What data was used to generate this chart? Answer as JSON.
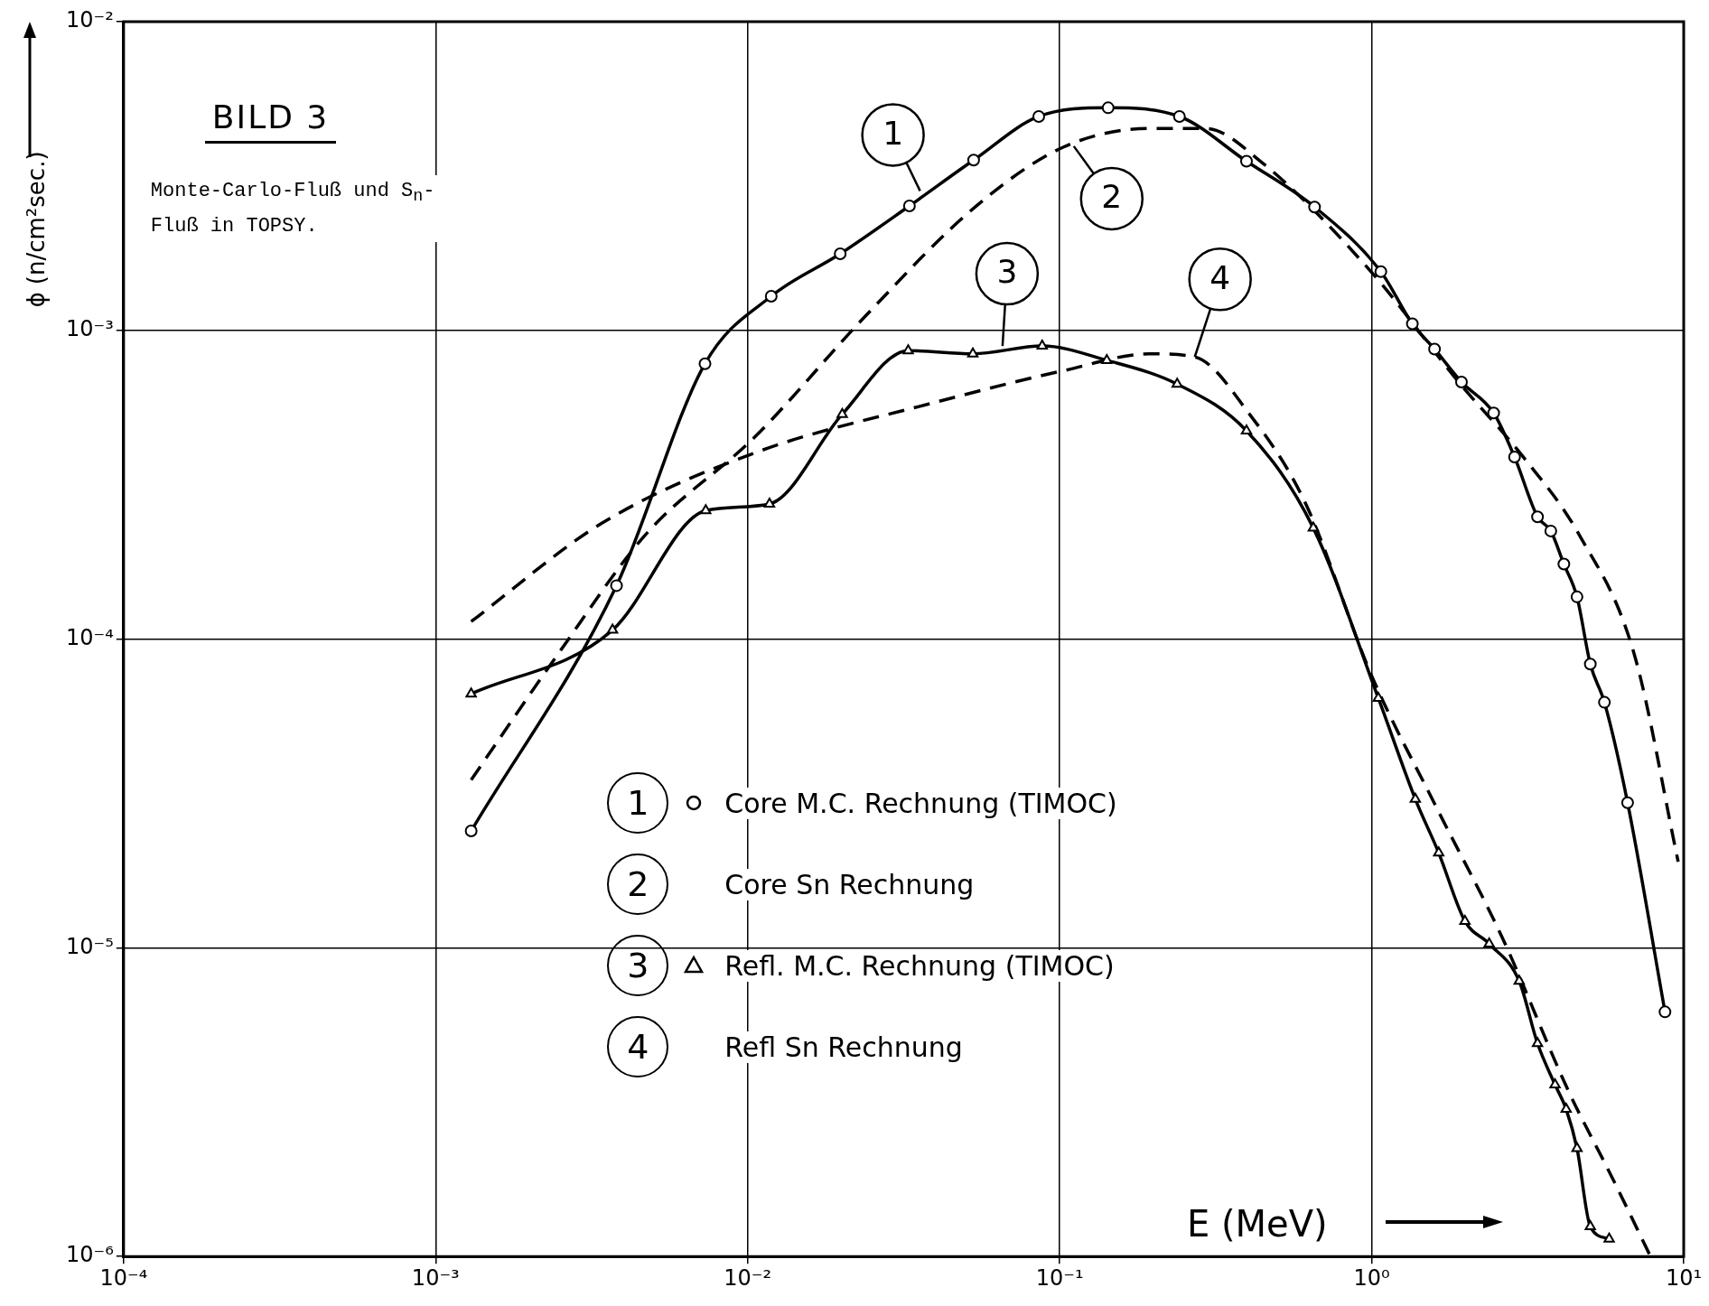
{
  "chart_data": {
    "type": "line",
    "title": "BILD 3",
    "subtitle": "Monte-Carlo-Fluß und S$_{n}$-Fluß in TOPSY.",
    "xlabel": "E (MeV)",
    "ylabel": "ϕ (n/cm²sec.)",
    "log": "xy",
    "grid": true,
    "legend": "bottom",
    "xlim": [
      0.0001,
      10
    ],
    "ylim": [
      1e-06,
      0.01
    ],
    "xticks": [
      {
        "value": 0.0001,
        "label": "10⁻⁴"
      },
      {
        "value": 0.001,
        "label": "10⁻³"
      },
      {
        "value": 0.01,
        "label": "10⁻²"
      },
      {
        "value": 0.1,
        "label": "10⁻¹"
      },
      {
        "value": 1,
        "label": "10⁰"
      },
      {
        "value": 10,
        "label": "10¹"
      }
    ],
    "yticks": [
      {
        "value": 1e-06,
        "label": "10⁻⁶"
      },
      {
        "value": 1e-05,
        "label": "10⁻⁵"
      },
      {
        "value": 0.0001,
        "label": "10⁻⁴"
      },
      {
        "value": 0.001,
        "label": "10⁻³"
      },
      {
        "value": 0.01,
        "label": "10⁻²"
      }
    ],
    "series": [
      {
        "name": "Core M.C. Rechnung (TIMOC)",
        "color": "#000000",
        "marker": "circle",
        "line_style": "solid",
        "x": [
          0.0013,
          0.0038,
          0.0073,
          0.0119,
          0.0198,
          0.033,
          0.053,
          0.0857,
          0.143,
          0.242,
          0.397,
          0.656,
          1.07,
          1.35,
          1.59,
          1.94,
          2.46,
          2.87,
          3.4,
          3.75,
          4.13,
          4.55,
          5.02,
          5.57,
          6.61,
          8.71
        ],
        "values": [
          2.39e-05,
          0.000149,
          0.00078,
          0.00129,
          0.00177,
          0.00253,
          0.00356,
          0.00493,
          0.00526,
          0.00493,
          0.00353,
          0.00251,
          0.00155,
          0.00105,
          0.00087,
          0.00068,
          0.00054,
          0.000389,
          0.000249,
          0.000224,
          0.000175,
          0.000137,
          8.3e-05,
          6.24e-05,
          2.95e-05,
          6.2e-06
        ]
      },
      {
        "name": "Core Sn Rechnung",
        "color": "#000000",
        "marker": "none",
        "line_style": "dashed",
        "x": [
          0.0013,
          0.00246,
          0.00471,
          0.0106,
          0.0238,
          0.0536,
          0.1026,
          0.196,
          0.294,
          0.44,
          1.0,
          1.9,
          3.08,
          4.62,
          6.95,
          9.6
        ],
        "values": [
          3.5e-05,
          8.9e-05,
          0.000218,
          0.000454,
          0.00111,
          0.00251,
          0.00392,
          0.00451,
          0.00451,
          0.00353,
          0.00154,
          0.00068,
          0.000386,
          0.000218,
          8.9e-05,
          1.9e-05
        ]
      },
      {
        "name": "Refl. M.C. Rechnung (TIMOC)",
        "color": "#000000",
        "marker": "triangle",
        "line_style": "solid",
        "x": [
          0.0013,
          0.00369,
          0.00734,
          0.01175,
          0.0201,
          0.0327,
          0.0527,
          0.0879,
          0.1416,
          0.238,
          0.397,
          0.65,
          1.05,
          1.38,
          1.64,
          1.99,
          2.38,
          2.97,
          3.4,
          3.87,
          4.2,
          4.55,
          5.02,
          5.77
        ],
        "values": [
          6.65e-05,
          0.000107,
          0.000261,
          0.000274,
          0.000535,
          0.00086,
          0.00084,
          0.00089,
          0.0008,
          0.00067,
          0.000473,
          0.000229,
          6.44e-05,
          3.03e-05,
          2.03e-05,
          1.22e-05,
          1.03e-05,
          7.8e-06,
          4.9e-06,
          3.6e-06,
          3e-06,
          2.24e-06,
          1.25e-06,
          1.14e-06
        ]
      },
      {
        "name": "Refl Sn Rechnung",
        "color": "#000000",
        "marker": "none",
        "line_style": "dashed",
        "x": [
          0.0013,
          0.0034,
          0.0106,
          0.0387,
          0.1026,
          0.196,
          0.271,
          0.406,
          0.61,
          1.0,
          1.61,
          2.62,
          4.27,
          5.9,
          7.83
        ],
        "values": [
          0.000114,
          0.000237,
          0.000402,
          0.00058,
          0.00074,
          0.00084,
          0.00082,
          0.000535,
          0.000279,
          7.6e-05,
          2.86e-05,
          1.08e-05,
          3.44e-06,
          1.8e-06,
          1e-06
        ]
      }
    ],
    "annotations": [
      {
        "text": "1",
        "x": 0.0357,
        "y": 0.00283
      },
      {
        "text": "2",
        "x": 0.111,
        "y": 0.00395
      },
      {
        "text": "3",
        "x": 0.0656,
        "y": 0.00089
      },
      {
        "text": "4",
        "x": 0.271,
        "y": 0.00082
      }
    ]
  }
}
